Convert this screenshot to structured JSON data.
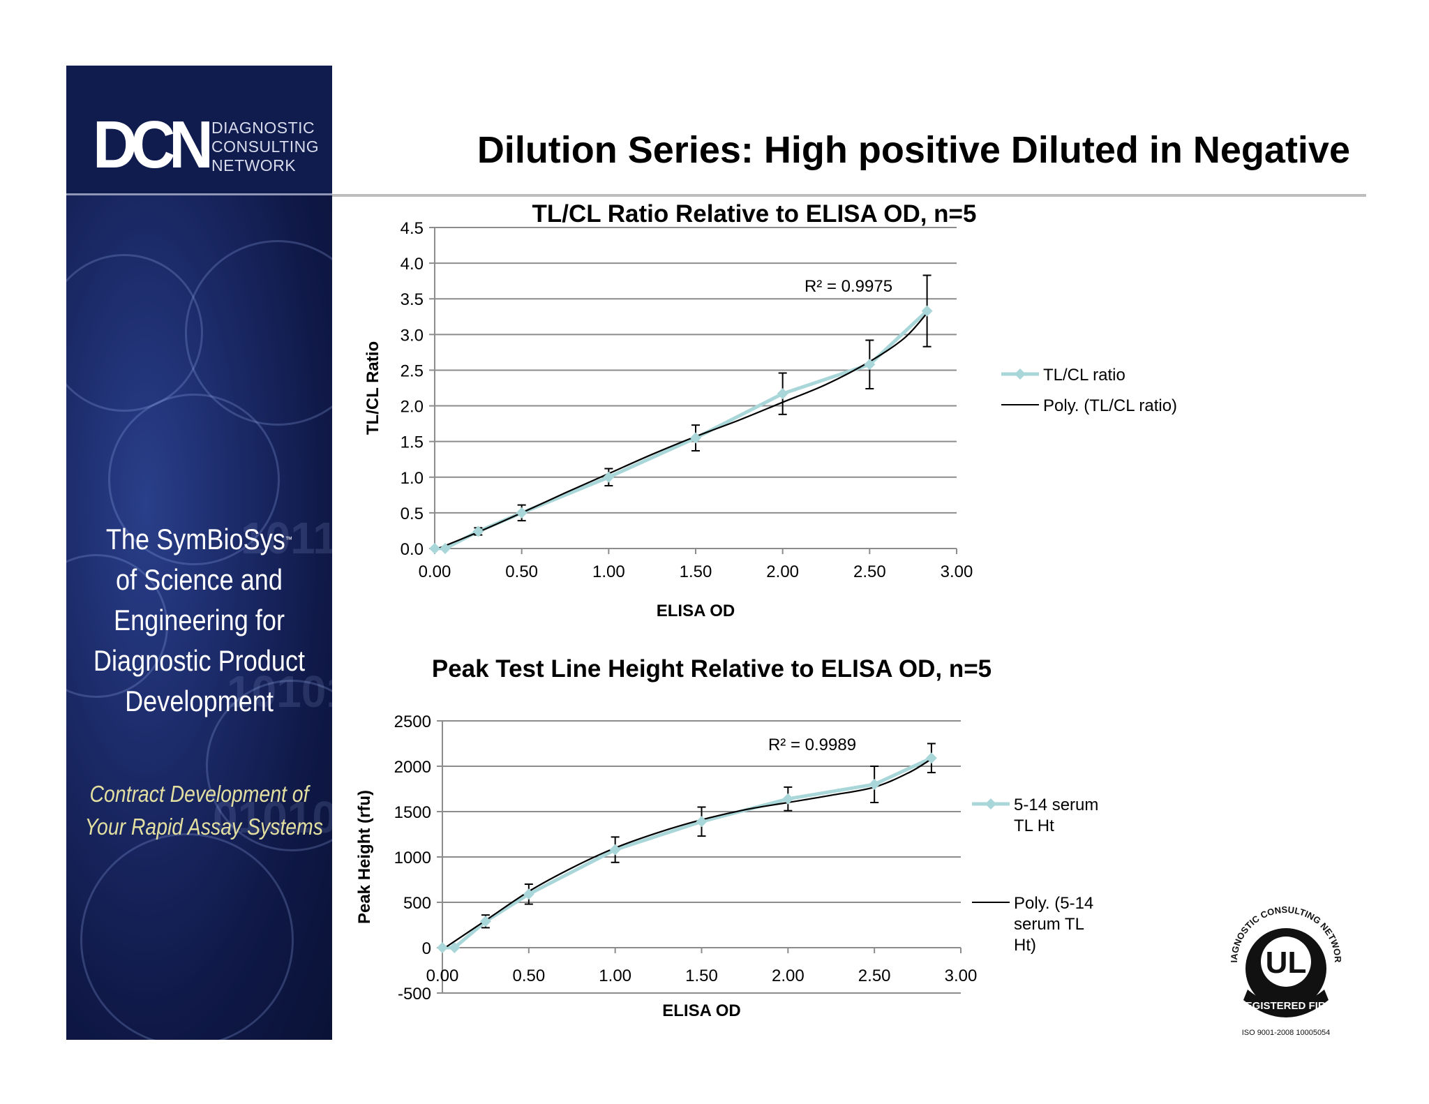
{
  "page": {
    "title": "Dilution Series: High positive Diluted in Negative"
  },
  "banner": {
    "logo_mark": "DCN",
    "logo_words": [
      "DIAGNOSTIC",
      "CONSULTING",
      "NETWORK"
    ],
    "tagline_lines": [
      "The SymBioSys",
      "of Science and",
      "Engineering for",
      "Diagnostic  Product",
      "Development"
    ],
    "tagline_tm": "™",
    "subtag_lines": [
      "Contract Development of",
      "Your Rapid Assay Systems"
    ]
  },
  "badge": {
    "ring_text": "DIAGNOSTIC CONSULTING NETWORK",
    "center_text": "UL",
    "band_text": "REGISTERED FIRM",
    "footer_text": "ISO 9001-2008   10005054"
  },
  "chart_data": [
    {
      "type": "line",
      "title": "TL/CL Ratio Relative to ELISA OD, n=5",
      "xlabel": "ELISA OD",
      "ylabel": "TL/CL Ratio",
      "xlim": [
        0,
        3
      ],
      "ylim": [
        0,
        4.5
      ],
      "x_ticks": [
        "0.00",
        "0.50",
        "1.00",
        "1.50",
        "2.00",
        "2.50",
        "3.00"
      ],
      "y_ticks": [
        "0.0",
        "0.5",
        "1.0",
        "1.5",
        "2.0",
        "2.5",
        "3.0",
        "3.5",
        "4.0",
        "4.5"
      ],
      "grid": "horizontal",
      "legend_position": "right",
      "annotation": "R² = 0.9975",
      "series": [
        {
          "name": "TL/CL ratio",
          "color": "#a9d6d8",
          "x": [
            0,
            0.06,
            0.25,
            0.5,
            1.0,
            1.5,
            2.0,
            2.5,
            2.83
          ],
          "y": [
            0,
            0,
            0.24,
            0.5,
            1.0,
            1.55,
            2.17,
            2.58,
            3.33
          ],
          "error": [
            0,
            0,
            0.05,
            0.11,
            0.12,
            0.18,
            0.29,
            0.34,
            0.5
          ]
        },
        {
          "name": "Poly. (TL/CL ratio)",
          "color": "#000000",
          "x": [
            0,
            0.25,
            0.5,
            0.75,
            1.0,
            1.25,
            1.5,
            1.75,
            2.0,
            2.25,
            2.5,
            2.7,
            2.83
          ],
          "y": [
            -0.02,
            0.23,
            0.5,
            0.78,
            1.05,
            1.32,
            1.57,
            1.8,
            2.05,
            2.3,
            2.62,
            2.95,
            3.3
          ]
        }
      ]
    },
    {
      "type": "line",
      "title": "Peak Test Line Height Relative to ELISA OD, n=5",
      "xlabel": "ELISA OD",
      "ylabel": "Peak Height (rfu)",
      "xlim": [
        0,
        3
      ],
      "ylim": [
        -500,
        2500
      ],
      "x_ticks": [
        "0.00",
        "0.50",
        "1.00",
        "1.50",
        "2.00",
        "2.50",
        "3.00"
      ],
      "y_ticks": [
        "-500",
        "0",
        "500",
        "1000",
        "1500",
        "2000",
        "2500"
      ],
      "grid": "horizontal",
      "legend_position": "right",
      "annotation": "R² = 0.9989",
      "series": [
        {
          "name": "5-14 serum TL Ht",
          "color": "#a9d6d8",
          "x": [
            0,
            0.07,
            0.25,
            0.5,
            1.0,
            1.5,
            2.0,
            2.5,
            2.83
          ],
          "y": [
            0,
            0,
            290,
            590,
            1080,
            1390,
            1640,
            1800,
            2090
          ],
          "error": [
            0,
            0,
            70,
            110,
            140,
            160,
            130,
            200,
            160
          ]
        },
        {
          "name": "Poly. (5-14 serum TL Ht)",
          "color": "#000000",
          "x": [
            0,
            0.25,
            0.5,
            0.75,
            1.0,
            1.25,
            1.5,
            1.75,
            2.0,
            2.25,
            2.5,
            2.7,
            2.83
          ],
          "y": [
            -20,
            300,
            620,
            880,
            1100,
            1270,
            1410,
            1520,
            1600,
            1680,
            1770,
            1930,
            2080
          ]
        }
      ]
    }
  ]
}
